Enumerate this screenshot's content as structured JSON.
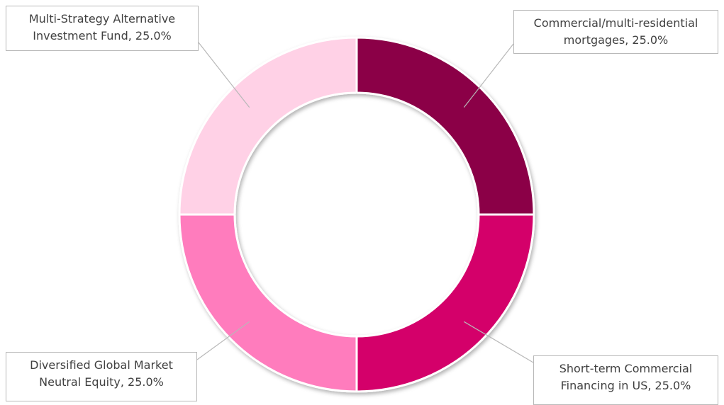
{
  "chart_data": {
    "type": "donut",
    "values": [
      25.0,
      25.0,
      25.0,
      25.0
    ],
    "value_labels": [
      "Commercial/multi-residential mortgages, 25.0%",
      "Short-term Commercial Financing in US, 25.0%",
      "Diversified Global Market Neutral Equity, 25.0%",
      "Multi-Strategy Alternative Investment Fund, 25.0%"
    ],
    "colors": [
      "#8b0046",
      "#d4006a",
      "#ff7bbd",
      "#ffd1e6"
    ]
  }
}
